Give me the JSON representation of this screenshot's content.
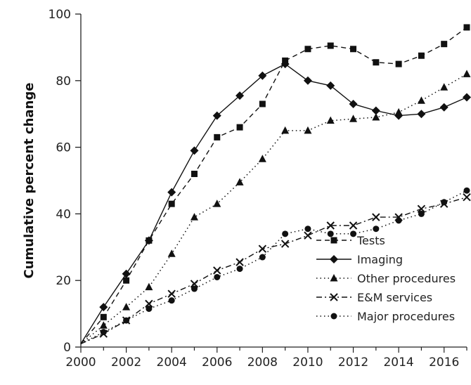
{
  "chart_data": {
    "type": "line",
    "title": "",
    "xlabel": "",
    "ylabel": "Cumulative percent change",
    "xlim": [
      2000,
      2017
    ],
    "ylim": [
      0,
      100
    ],
    "x_ticks": [
      2000,
      2002,
      2004,
      2006,
      2008,
      2010,
      2012,
      2014,
      2016
    ],
    "y_ticks": [
      0,
      20,
      40,
      60,
      80,
      100
    ],
    "grid": false,
    "legend_position": "bottom-right",
    "x": [
      2000,
      2001,
      2002,
      2003,
      2004,
      2005,
      2006,
      2007,
      2008,
      2009,
      2010,
      2011,
      2012,
      2013,
      2014,
      2015,
      2016,
      2017
    ],
    "series": [
      {
        "name": "Tests",
        "marker": "square",
        "line": "dashed",
        "values": [
          1,
          9,
          20,
          32,
          43,
          52,
          63,
          66,
          73,
          86,
          89.5,
          90.5,
          89.5,
          85.5,
          85,
          87.5,
          91,
          96
        ]
      },
      {
        "name": "Imaging",
        "marker": "diamond",
        "line": "solid",
        "values": [
          1,
          12,
          22,
          32,
          46.5,
          59,
          69.5,
          75.5,
          81.5,
          85,
          80,
          78.5,
          73,
          71,
          69.5,
          70,
          72,
          75
        ]
      },
      {
        "name": "Other procedures",
        "marker": "triangle",
        "line": "dotted",
        "values": [
          1,
          6.5,
          12,
          18,
          28,
          39,
          43,
          49.5,
          56.5,
          65,
          65,
          68,
          68.5,
          69,
          70.5,
          74,
          78,
          82
        ]
      },
      {
        "name": "E&M services",
        "marker": "x",
        "line": "dashdot",
        "values": [
          1,
          4,
          8,
          13,
          16,
          19,
          23,
          25.5,
          29.5,
          31,
          33.5,
          36.5,
          36.5,
          39,
          39,
          41.5,
          43,
          45
        ]
      },
      {
        "name": "Major procedures",
        "marker": "circle",
        "line": "dotted",
        "values": [
          1,
          4.5,
          8,
          11.5,
          14,
          17.5,
          21,
          23.5,
          27,
          34,
          35.5,
          34,
          34,
          35.5,
          38,
          40,
          43.5,
          47
        ]
      }
    ]
  }
}
